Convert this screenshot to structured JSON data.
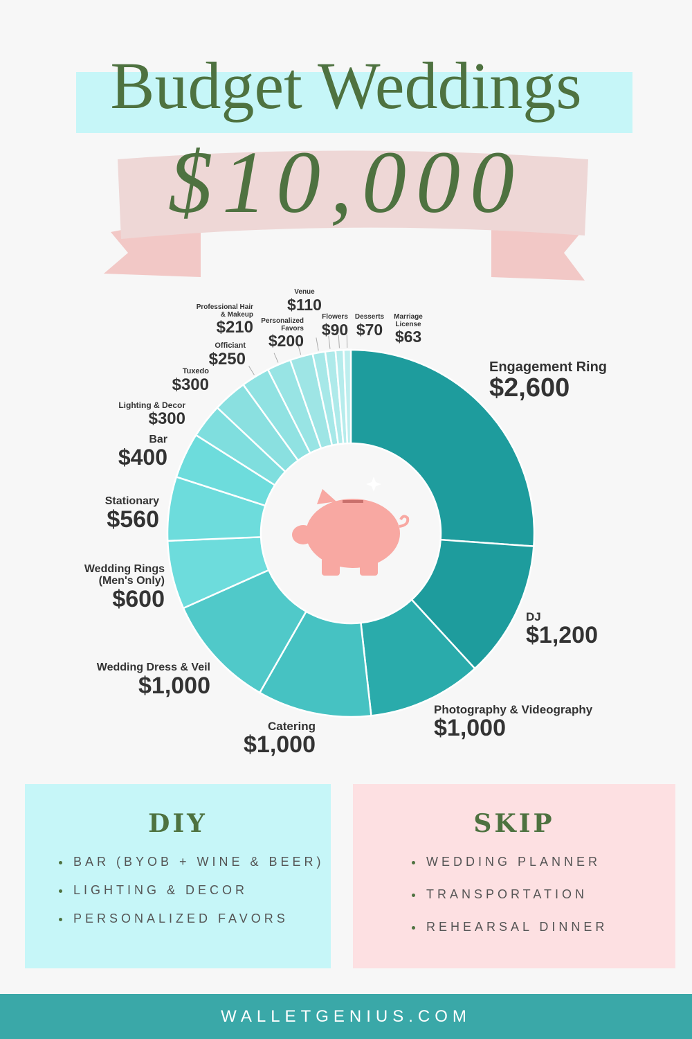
{
  "chart_data": {
    "type": "donut",
    "title": "Budget Weddings",
    "subtitle": "$10,000",
    "categories": [
      "Engagement Ring",
      "DJ",
      "Photography & Videography",
      "Catering",
      "Wedding Dress & Veil",
      "Wedding Rings (Men's Only)",
      "Stationary",
      "Bar",
      "Lighting & Decor",
      "Tuxedo",
      "Officiant",
      "Professional Hair & Makeup",
      "Personalized Favors",
      "Venue",
      "Flowers",
      "Desserts",
      "Marriage License"
    ],
    "values": [
      2600,
      1200,
      1000,
      1000,
      1000,
      600,
      560,
      400,
      300,
      300,
      250,
      210,
      200,
      110,
      90,
      70,
      63
    ],
    "value_labels": [
      "$2,600",
      "$1,200",
      "$1,000",
      "$1,000",
      "$1,000",
      "$600",
      "$560",
      "$400",
      "$300",
      "$300",
      "$250",
      "$210",
      "$200",
      "$110",
      "$90",
      "$70",
      "$63"
    ],
    "colors": [
      "#1e9c9d",
      "#1e9c9d",
      "#2aabab",
      "#46c2c2",
      "#50c9c9",
      "#6ddcdc",
      "#6ddcdc",
      "#6ddcdc",
      "#7fdede",
      "#8ae0e0",
      "#90e2e2",
      "#98e4e4",
      "#9ee5e5",
      "#a6e8e8",
      "#aeeaea",
      "#b6ecec",
      "#bdeeee"
    ]
  },
  "diy": {
    "title": "DIY",
    "items": [
      "BAR (BYOB + WINE & BEER)",
      "LIGHTING & DECOR",
      "PERSONALIZED FAVORS"
    ]
  },
  "skip": {
    "title": "SKIP",
    "items": [
      "WEDDING PLANNER",
      "TRANSPORTATION",
      "REHEARSAL DINNER"
    ]
  },
  "footer": "WALLETGENIUS.COM"
}
